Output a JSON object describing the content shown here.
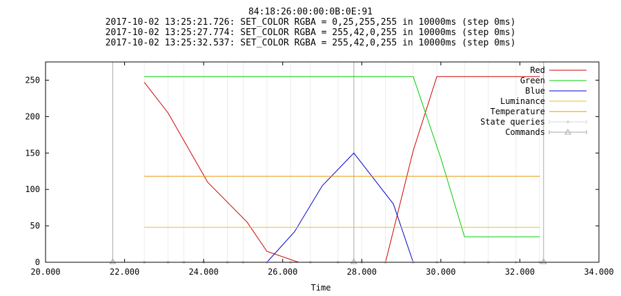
{
  "chart_data": {
    "type": "line",
    "title": "84:18:26:00:00:0B:0E:91",
    "subtitle_lines": [
      "2017-10-02 13:25:21.726: SET_COLOR RGBA = 0,25,255,255 in 10000ms (step 0ms)",
      "2017-10-02 13:25:27.774: SET_COLOR RGBA = 255,42,0,255 in 10000ms (step 0ms)",
      "2017-10-02 13:25:32.537: SET_COLOR RGBA = 255,42,0,255 in 10000ms (step 0ms)"
    ],
    "xlabel": "Time",
    "ylabel": "",
    "xlim": [
      20,
      34
    ],
    "ylim": [
      0,
      275
    ],
    "x_ticks": [
      20,
      22,
      24,
      26,
      28,
      30,
      32,
      34
    ],
    "x_tick_labels": [
      "20.000",
      "22.000",
      "24.000",
      "26.000",
      "28.000",
      "30.000",
      "32.000",
      "34.000"
    ],
    "y_ticks": [
      0,
      50,
      100,
      150,
      200,
      250
    ],
    "y_tick_labels": [
      "0",
      "50",
      "100",
      "150",
      "200",
      "250"
    ],
    "legend_position": "top-right",
    "series": [
      {
        "name": "Red",
        "color": "#cc0000",
        "points": [
          [
            22.5,
            247
          ],
          [
            23.1,
            205
          ],
          [
            24.1,
            110
          ],
          [
            25.1,
            55
          ],
          [
            25.6,
            15
          ],
          [
            26.4,
            0
          ],
          [
            28.6,
            0
          ],
          [
            29.3,
            153
          ],
          [
            29.9,
            255
          ],
          [
            32.5,
            255
          ]
        ]
      },
      {
        "name": "Green",
        "color": "#00cc00",
        "points": [
          [
            22.5,
            255
          ],
          [
            29.3,
            255
          ],
          [
            30.0,
            143
          ],
          [
            30.6,
            35
          ],
          [
            32.5,
            35
          ]
        ]
      },
      {
        "name": "Blue",
        "color": "#0000cc",
        "points": [
          [
            25.6,
            0
          ],
          [
            26.3,
            42
          ],
          [
            27.0,
            105
          ],
          [
            27.8,
            150
          ],
          [
            28.8,
            80
          ],
          [
            29.3,
            0
          ]
        ]
      },
      {
        "name": "Luminance",
        "color": "#e6c800",
        "points": [
          [
            22.5,
            48
          ],
          [
            32.5,
            48
          ]
        ]
      },
      {
        "name": "Temperature",
        "color": "#e69500",
        "points": [
          [
            22.5,
            118
          ],
          [
            32.5,
            118
          ]
        ]
      }
    ],
    "state_queries": {
      "name": "State queries",
      "color": "#d8d8d8",
      "x": [
        22.5,
        23.1,
        23.5,
        24.0,
        24.6,
        25.0,
        25.6,
        26.2,
        26.7,
        27.4,
        28.0,
        28.6,
        29.3,
        29.9,
        30.6,
        31.2,
        31.9,
        32.5
      ]
    },
    "commands": {
      "name": "Commands",
      "color": "#a8a8a8",
      "x": [
        21.7,
        27.8,
        32.6
      ]
    }
  }
}
